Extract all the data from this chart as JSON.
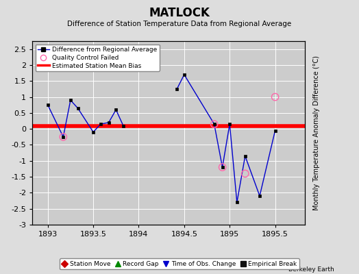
{
  "title": "MATLOCK",
  "subtitle": "Difference of Station Temperature Data from Regional Average",
  "ylabel_right": "Monthly Temperature Anomaly Difference (°C)",
  "xlim": [
    1892.83,
    1895.83
  ],
  "ylim": [
    -3.0,
    2.75
  ],
  "yticks": [
    -3,
    -2.5,
    -2,
    -1.5,
    -1,
    -0.5,
    0,
    0.5,
    1,
    1.5,
    2,
    2.5
  ],
  "ytick_labels": [
    "-3",
    "-2.5",
    "-2",
    "-1.5",
    "-1",
    "-0.5",
    "0",
    "0.5",
    "1",
    "1.5",
    "2",
    "2.5"
  ],
  "xticks": [
    1893,
    1893.5,
    1894,
    1894.5,
    1895,
    1895.5
  ],
  "xtick_labels": [
    "1893",
    "1893.5",
    "1894",
    "1894.5",
    "1895",
    "1895.5"
  ],
  "background_color": "#dddddd",
  "plot_bg_color": "#cccccc",
  "grid_color": "#ffffff",
  "bias_value": 0.1,
  "line_color": "#0000cc",
  "segment1_x": [
    1893.0,
    1893.17,
    1893.25,
    1893.33,
    1893.5,
    1893.58,
    1893.67,
    1893.75,
    1893.83
  ],
  "segment1_y": [
    0.75,
    -0.25,
    0.9,
    0.65,
    -0.1,
    0.15,
    0.2,
    0.6,
    0.1
  ],
  "segment2_x": [
    1894.42,
    1894.5,
    1894.83,
    1894.92,
    1895.0,
    1895.08,
    1895.17,
    1895.33,
    1895.5
  ],
  "segment2_y": [
    1.25,
    1.7,
    0.15,
    -1.2,
    0.15,
    -2.3,
    -0.85,
    -2.1,
    -0.05
  ],
  "qc_failed_x": [
    1893.17,
    1894.83,
    1894.92,
    1895.17,
    1895.5
  ],
  "qc_failed_y": [
    -0.25,
    0.15,
    -1.2,
    -1.4,
    1.0
  ],
  "watermark": "Berkeley Earth",
  "bottom_legend": [
    {
      "label": "Station Move",
      "color": "#cc0000",
      "marker": "D"
    },
    {
      "label": "Record Gap",
      "color": "#008800",
      "marker": "^"
    },
    {
      "label": "Time of Obs. Change",
      "color": "#0000cc",
      "marker": "v"
    },
    {
      "label": "Empirical Break",
      "color": "#111111",
      "marker": "s"
    }
  ]
}
